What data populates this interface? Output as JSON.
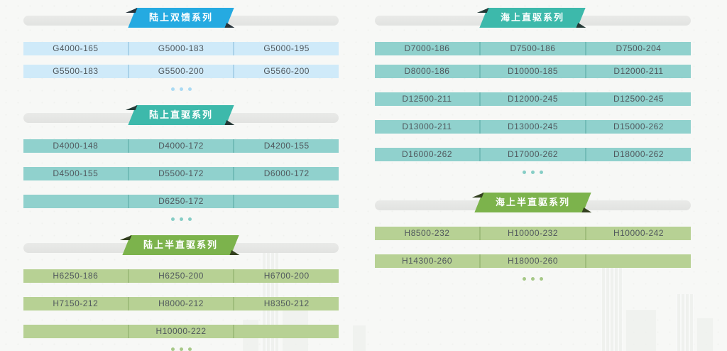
{
  "page": {
    "background": "#f7f8f6"
  },
  "themes": {
    "blue": {
      "banner": "#25aae1",
      "row": "#cfeaf9",
      "divider": "#aad2e9",
      "dots": "#a9daf3",
      "fold": "#27333a"
    },
    "teal": {
      "banner": "#3db9ab",
      "row": "#90d1cd",
      "divider": "#72bcb7",
      "dots": "#86cdc5",
      "fold": "#253a37"
    },
    "green": {
      "banner": "#7cb34c",
      "row": "#b7d194",
      "divider": "#9fbd7c",
      "dots": "#a6c887",
      "fold": "#33401f"
    }
  },
  "sections": [
    {
      "title": "陆上双馈系列",
      "theme": "blue",
      "column": "left",
      "tight_first": true,
      "rows": [
        [
          "G4000-165",
          "G5000-183",
          "G5000-195"
        ],
        [
          "G5500-183",
          "G5500-200",
          "G5560-200"
        ]
      ]
    },
    {
      "title": "陆上直驱系列",
      "theme": "teal",
      "column": "left",
      "tight_first": false,
      "rows": [
        [
          "D4000-148",
          "D4000-172",
          "D4200-155"
        ],
        [
          "D4500-155",
          "D5500-172",
          "D6000-172"
        ],
        [
          "",
          "D6250-172",
          ""
        ]
      ]
    },
    {
      "title": "陆上半直驱系列",
      "theme": "green",
      "column": "left",
      "tight_first": false,
      "rows": [
        [
          "H6250-186",
          "H6250-200",
          "H6700-200"
        ],
        [
          "H7150-212",
          "H8000-212",
          "H8350-212"
        ],
        [
          "",
          "H10000-222",
          ""
        ]
      ]
    },
    {
      "title": "海上直驱系列",
      "theme": "teal",
      "column": "right",
      "tight_first": true,
      "rows": [
        [
          "D7000-186",
          "D7500-186",
          "D7500-204"
        ],
        [
          "D8000-186",
          "D10000-185",
          "D12000-211"
        ],
        [
          "D12500-211",
          "D12000-245",
          "D12500-245"
        ],
        [
          "D13000-211",
          "D13000-245",
          "D15000-262"
        ],
        [
          "D16000-262",
          "D17000-262",
          "D18000-262"
        ]
      ]
    },
    {
      "title": "海上半直驱系列",
      "theme": "green",
      "column": "right",
      "tight_first": false,
      "rows": [
        [
          "H8500-232",
          "H10000-232",
          "H10000-242"
        ],
        [
          "H14300-260",
          "H18000-260",
          ""
        ]
      ]
    }
  ]
}
